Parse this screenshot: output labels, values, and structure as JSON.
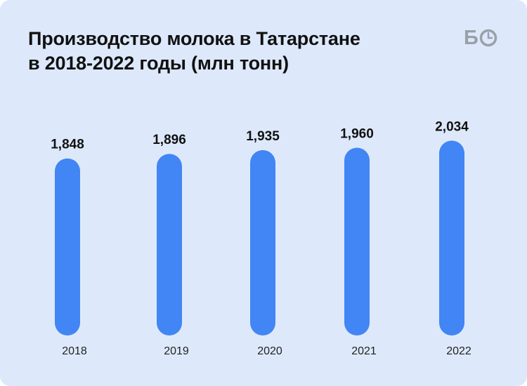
{
  "header": {
    "title_line1": "Производство молока в Татарстане",
    "title_line2": "в 2018-2022 годы (млн тонн)",
    "logo_text": "БО"
  },
  "colors": {
    "background": "#dde9fb",
    "bar": "#4285f4",
    "text": "#111111",
    "logo": "#9aa0a8"
  },
  "chart_data": {
    "type": "bar",
    "title": "Производство молока в Татарстане в 2018-2022 годы (млн тонн)",
    "categories": [
      "2018",
      "2019",
      "2020",
      "2021",
      "2022"
    ],
    "values": [
      1.848,
      1.896,
      1.935,
      1.96,
      2.034
    ],
    "value_labels": [
      "1,848",
      "1,896",
      "1,935",
      "1,960",
      "2,034"
    ],
    "xlabel": "",
    "ylabel": "",
    "ylim": [
      0,
      2.15
    ],
    "grid": false,
    "legend": "none"
  }
}
